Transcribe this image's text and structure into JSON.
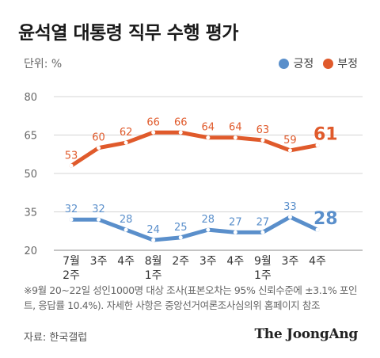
{
  "title": "윤석열 대통령 직무 수행 평가",
  "unit_label": "단위: %",
  "legend": [
    {
      "label": "긍정",
      "color": "#5a8fcb"
    },
    {
      "label": "부정",
      "color": "#e05a2b"
    }
  ],
  "chart_data": {
    "type": "line",
    "categories": [
      [
        "7월",
        "2주"
      ],
      [
        "3주"
      ],
      [
        "4주"
      ],
      [
        "8월",
        "1주"
      ],
      [
        "2주"
      ],
      [
        "3주"
      ],
      [
        "4주"
      ],
      [
        "9월",
        "1주"
      ],
      [
        "3주"
      ],
      [
        "4주"
      ]
    ],
    "series": [
      {
        "name": "긍정",
        "color": "#5a8fcb",
        "values": [
          32,
          32,
          28,
          24,
          25,
          28,
          27,
          27,
          33,
          28
        ]
      },
      {
        "name": "부정",
        "color": "#e05a2b",
        "values": [
          53,
          60,
          62,
          66,
          66,
          64,
          64,
          63,
          59,
          61
        ]
      }
    ],
    "yticks": [
      80,
      65,
      50,
      35,
      20
    ],
    "ylim": [
      20,
      80
    ],
    "grid": true,
    "legend_position": "top-right"
  },
  "note": "※9월 20~22일 성인1000명 대상 조사(표본오차는 95% 신뢰수준에 ±3.1% 포인트, 응답률 10.4%). 자세한 사항은 중앙선거여론조사심의위 홈페이지 참조",
  "source": "자료: 한국갤럽",
  "logo": "The JoongAng"
}
